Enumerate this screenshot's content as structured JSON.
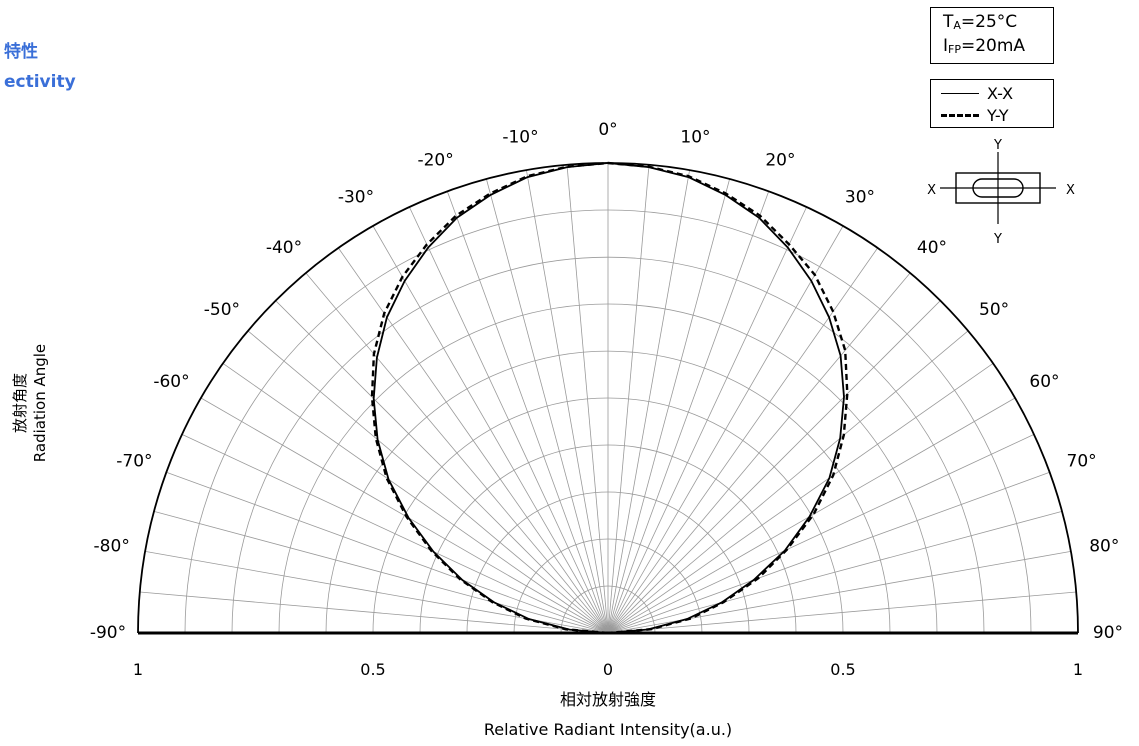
{
  "title_jp": "特性",
  "title_en": "ectivity",
  "ylabel_jp": "放射角度",
  "ylabel_en": "Radiation Angle",
  "conditions": {
    "ta_symbol": "T",
    "ta_sub": "A",
    "ta_value": "=25°C",
    "ifp_symbol": "I",
    "ifp_sub": "FP",
    "ifp_value": "=20mA"
  },
  "legend": [
    {
      "label": "X-X",
      "style": "solid"
    },
    {
      "label": "Y-Y",
      "style": "dashed"
    }
  ],
  "package_diagram": {
    "x_label": "X",
    "y_label": "Y"
  },
  "chart_data": {
    "type": "polar",
    "angle_labels": [
      "-90°",
      "-80°",
      "-70°",
      "-60°",
      "-50°",
      "-40°",
      "-30°",
      "-20°",
      "-10°",
      "0°",
      "10°",
      "20°",
      "30°",
      "40°",
      "50°",
      "60°",
      "70°",
      "80°",
      "90°"
    ],
    "angle_range": [
      -90,
      90
    ],
    "radial_tick_labels": [
      "1",
      "0.5",
      "0",
      "0.5",
      "1"
    ],
    "radial_range": [
      0,
      1
    ],
    "xlabel_jp": "相対放射強度",
    "xlabel_en": "Relative Radiant Intensity(a.u.)",
    "grid": true,
    "series": [
      {
        "name": "X-X",
        "angles": [
          -90,
          -85,
          -80,
          -75,
          -70,
          -65,
          -60,
          -55,
          -50,
          -45,
          -40,
          -35,
          -30,
          -25,
          -20,
          -15,
          -10,
          -5,
          0,
          5,
          10,
          15,
          20,
          25,
          30,
          35,
          40,
          45,
          50,
          55,
          60,
          65,
          70,
          75,
          80,
          85,
          90
        ],
        "values": [
          0.0,
          0.082,
          0.171,
          0.25,
          0.33,
          0.41,
          0.49,
          0.57,
          0.64,
          0.705,
          0.765,
          0.82,
          0.865,
          0.905,
          0.94,
          0.965,
          0.985,
          0.995,
          1.0,
          0.995,
          0.985,
          0.965,
          0.94,
          0.905,
          0.865,
          0.82,
          0.77,
          0.71,
          0.645,
          0.575,
          0.495,
          0.415,
          0.33,
          0.25,
          0.171,
          0.085,
          0.0
        ]
      },
      {
        "name": "Y-Y",
        "angles": [
          -90,
          -85,
          -80,
          -75,
          -70,
          -65,
          -60,
          -55,
          -50,
          -45,
          -40,
          -35,
          -30,
          -25,
          -20,
          -15,
          -10,
          -5,
          0,
          5,
          10,
          15,
          20,
          25,
          30,
          35,
          40,
          45,
          50,
          55,
          60,
          65,
          70,
          75,
          80,
          85,
          90
        ],
        "values": [
          0.0,
          0.09,
          0.178,
          0.255,
          0.335,
          0.415,
          0.495,
          0.575,
          0.645,
          0.71,
          0.775,
          0.83,
          0.875,
          0.912,
          0.945,
          0.968,
          0.987,
          0.996,
          1.0,
          0.996,
          0.987,
          0.968,
          0.945,
          0.912,
          0.88,
          0.835,
          0.785,
          0.72,
          0.655,
          0.585,
          0.505,
          0.42,
          0.34,
          0.255,
          0.18,
          0.092,
          0.0
        ]
      }
    ]
  }
}
